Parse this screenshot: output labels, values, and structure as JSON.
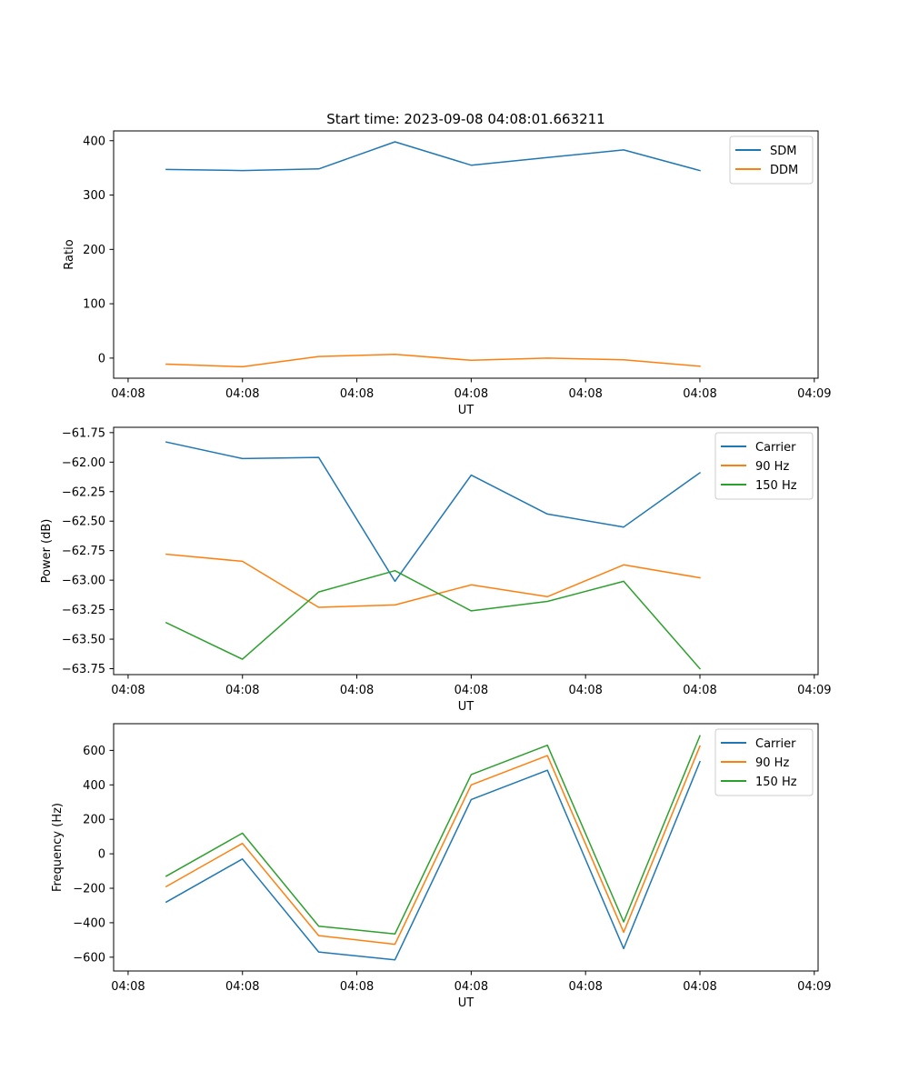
{
  "figure": {
    "title": "Start time: 2023-09-08 04:08:01.663211"
  },
  "chart_data": [
    {
      "type": "line",
      "title": "Start time: 2023-09-08 04:08:01.663211",
      "xlabel": "UT",
      "ylabel": "Ratio",
      "x": [
        1,
        2,
        3,
        4,
        5,
        6,
        7,
        8
      ],
      "xlim": [
        0.31,
        9.55
      ],
      "x_ticks": [
        0.5,
        2.0,
        3.5,
        5.0,
        6.5,
        8.0,
        9.5
      ],
      "x_tick_labels": [
        "04:08",
        "04:08",
        "04:08",
        "04:08",
        "04:08",
        "04:08",
        "04:09"
      ],
      "ylim": [
        -37,
        418
      ],
      "y_ticks": [
        0,
        100,
        200,
        300,
        400
      ],
      "y_tick_labels": [
        "0",
        "100",
        "200",
        "300",
        "400"
      ],
      "grid": false,
      "legend_position": "upper-right",
      "series": [
        {
          "name": "SDM",
          "color": "#1f77b4",
          "values": [
            347,
            345,
            348,
            398,
            355,
            369,
            383,
            345
          ]
        },
        {
          "name": "DDM",
          "color": "#ff7f0e",
          "values": [
            -11,
            -16,
            3,
            7,
            -4,
            0,
            -3,
            -15
          ]
        }
      ]
    },
    {
      "type": "line",
      "xlabel": "UT",
      "ylabel": "Power (dB)",
      "x": [
        1,
        2,
        3,
        4,
        5,
        6,
        7,
        8
      ],
      "xlim": [
        0.31,
        9.55
      ],
      "x_ticks": [
        0.5,
        2.0,
        3.5,
        5.0,
        6.5,
        8.0,
        9.5
      ],
      "x_tick_labels": [
        "04:08",
        "04:08",
        "04:08",
        "04:08",
        "04:08",
        "04:08",
        "04:09"
      ],
      "ylim": [
        -63.8,
        -61.705
      ],
      "y_ticks": [
        -61.75,
        -62.0,
        -62.25,
        -62.5,
        -62.75,
        -63.0,
        -63.25,
        -63.5,
        -63.75
      ],
      "y_tick_labels": [
        "−61.75",
        "−62.00",
        "−62.25",
        "−62.50",
        "−62.75",
        "−63.00",
        "−63.25",
        "−63.50",
        "−63.75"
      ],
      "grid": false,
      "legend_position": "upper-right",
      "series": [
        {
          "name": "Carrier",
          "color": "#1f77b4",
          "values": [
            -61.83,
            -61.97,
            -61.96,
            -63.01,
            -62.11,
            -62.44,
            -62.55,
            -62.09
          ]
        },
        {
          "name": "90 Hz",
          "color": "#ff7f0e",
          "values": [
            -62.78,
            -62.84,
            -63.23,
            -63.21,
            -63.04,
            -63.14,
            -62.87,
            -62.98
          ]
        },
        {
          "name": "150 Hz",
          "color": "#2ca02c",
          "values": [
            -63.36,
            -63.67,
            -63.1,
            -62.92,
            -63.26,
            -63.18,
            -63.01,
            -63.75
          ]
        }
      ]
    },
    {
      "type": "line",
      "xlabel": "UT",
      "ylabel": "Frequency (Hz)",
      "x": [
        1,
        2,
        3,
        4,
        5,
        6,
        7,
        8
      ],
      "xlim": [
        0.31,
        9.55
      ],
      "x_ticks": [
        0.5,
        2.0,
        3.5,
        5.0,
        6.5,
        8.0,
        9.5
      ],
      "x_tick_labels": [
        "04:08",
        "04:08",
        "04:08",
        "04:08",
        "04:08",
        "04:08",
        "04:09"
      ],
      "ylim": [
        -680,
        755
      ],
      "y_ticks": [
        600,
        400,
        200,
        0,
        -200,
        -400,
        -600
      ],
      "y_tick_labels": [
        "600",
        "400",
        "200",
        "0",
        "−200",
        "−400",
        "−600"
      ],
      "grid": false,
      "legend_position": "upper-right",
      "series": [
        {
          "name": "Carrier",
          "color": "#1f77b4",
          "values": [
            -280,
            -30,
            -570,
            -615,
            315,
            485,
            -550,
            535
          ]
        },
        {
          "name": "90 Hz",
          "color": "#ff7f0e",
          "values": [
            -190,
            60,
            -475,
            -525,
            400,
            570,
            -455,
            625
          ]
        },
        {
          "name": "150 Hz",
          "color": "#2ca02c",
          "values": [
            -130,
            120,
            -420,
            -465,
            460,
            630,
            -395,
            685
          ]
        }
      ]
    }
  ]
}
